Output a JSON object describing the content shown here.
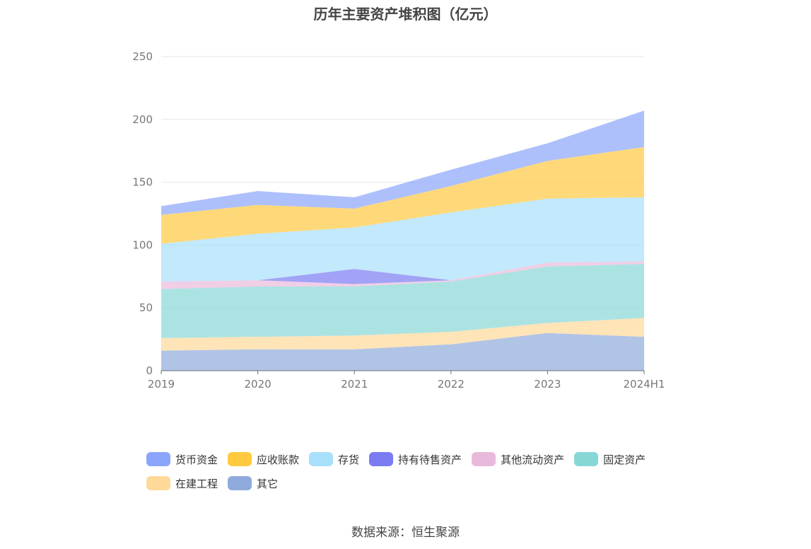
{
  "chart_data": {
    "type": "area",
    "stacked": true,
    "title": "历年主要资产堆积图（亿元）",
    "categories": [
      "2019",
      "2020",
      "2021",
      "2022",
      "2023",
      "2024H1"
    ],
    "ylim": [
      0,
      250
    ],
    "yticks": [
      "0",
      "50",
      "100",
      "150",
      "200",
      "250"
    ],
    "grid": true,
    "legend_position": "bottom",
    "series": [
      {
        "name": "其它",
        "color": "#8fabdc",
        "values": [
          16,
          17,
          17,
          21,
          30,
          27
        ]
      },
      {
        "name": "在建工程",
        "color": "#ffd99a",
        "values": [
          10,
          10,
          11,
          10,
          8,
          15
        ]
      },
      {
        "name": "固定资产",
        "color": "#87d7d7",
        "values": [
          39,
          40,
          39,
          40,
          45,
          43
        ]
      },
      {
        "name": "其他流动资产",
        "color": "#e9b9dc",
        "values": [
          6,
          5,
          2,
          1,
          3,
          2
        ]
      },
      {
        "name": "持有待售资产",
        "color": "#7b7cf2",
        "values": [
          0,
          0,
          12,
          0,
          0,
          0
        ]
      },
      {
        "name": "存货",
        "color": "#a8e0fb",
        "values": [
          30,
          37,
          33,
          54,
          51,
          51
        ]
      },
      {
        "name": "应收账款",
        "color": "#ffc940",
        "values": [
          23,
          23,
          15,
          21,
          30,
          40
        ]
      },
      {
        "name": "货币资金",
        "color": "#8aa5fb",
        "values": [
          7,
          11,
          9,
          13,
          14,
          29
        ]
      }
    ]
  },
  "legend_order": [
    "货币资金",
    "应收账款",
    "存货",
    "持有待售资产",
    "其他流动资产",
    "固定资产",
    "在建工程",
    "其它"
  ],
  "source": "数据来源：恒生聚源"
}
